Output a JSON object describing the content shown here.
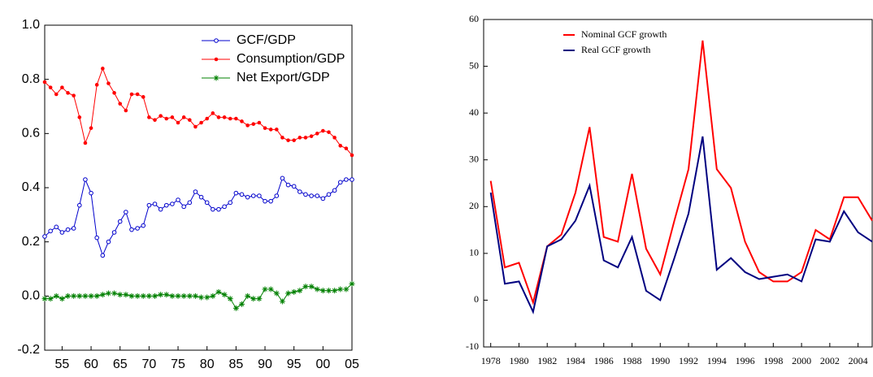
{
  "chart_data": [
    {
      "type": "line",
      "x": [
        1952,
        1953,
        1954,
        1955,
        1956,
        1957,
        1958,
        1959,
        1960,
        1961,
        1962,
        1963,
        1964,
        1965,
        1966,
        1967,
        1968,
        1969,
        1970,
        1971,
        1972,
        1973,
        1974,
        1975,
        1976,
        1977,
        1978,
        1979,
        1980,
        1981,
        1982,
        1983,
        1984,
        1985,
        1986,
        1987,
        1988,
        1989,
        1990,
        1991,
        1992,
        1993,
        1994,
        1995,
        1996,
        1997,
        1998,
        1999,
        2000,
        2001,
        2002,
        2003,
        2004,
        2005
      ],
      "series": [
        {
          "name": "GCF/GDP",
          "color": "#0000cc",
          "marker": "open-circle",
          "values": [
            0.22,
            0.24,
            0.255,
            0.235,
            0.245,
            0.25,
            0.335,
            0.43,
            0.38,
            0.215,
            0.15,
            0.2,
            0.235,
            0.275,
            0.31,
            0.245,
            0.25,
            0.26,
            0.335,
            0.34,
            0.32,
            0.335,
            0.34,
            0.355,
            0.33,
            0.345,
            0.385,
            0.365,
            0.345,
            0.32,
            0.32,
            0.33,
            0.345,
            0.38,
            0.375,
            0.365,
            0.37,
            0.37,
            0.35,
            0.35,
            0.37,
            0.435,
            0.41,
            0.405,
            0.385,
            0.375,
            0.37,
            0.37,
            0.36,
            0.375,
            0.39,
            0.42,
            0.43,
            0.43
          ]
        },
        {
          "name": "Consumption/GDP",
          "color": "#ff0000",
          "marker": "dot",
          "values": [
            0.79,
            0.77,
            0.745,
            0.77,
            0.75,
            0.74,
            0.66,
            0.565,
            0.62,
            0.78,
            0.84,
            0.785,
            0.75,
            0.71,
            0.685,
            0.745,
            0.745,
            0.735,
            0.66,
            0.65,
            0.665,
            0.655,
            0.66,
            0.64,
            0.66,
            0.65,
            0.625,
            0.64,
            0.655,
            0.675,
            0.66,
            0.66,
            0.655,
            0.655,
            0.645,
            0.63,
            0.635,
            0.64,
            0.62,
            0.615,
            0.615,
            0.585,
            0.575,
            0.575,
            0.585,
            0.585,
            0.59,
            0.6,
            0.61,
            0.605,
            0.585,
            0.555,
            0.545,
            0.52
          ]
        },
        {
          "name": "Net Export/GDP",
          "color": "#008000",
          "marker": "star",
          "values": [
            -0.01,
            -0.01,
            0,
            -0.01,
            0,
            0,
            0,
            0,
            0,
            0,
            0.005,
            0.01,
            0.01,
            0.005,
            0.005,
            0,
            0,
            0,
            0,
            0,
            0.005,
            0.005,
            0,
            0,
            0,
            0,
            0,
            -0.005,
            -0.005,
            0,
            0.015,
            0.005,
            -0.01,
            -0.045,
            -0.03,
            0,
            -0.01,
            -0.01,
            0.025,
            0.025,
            0.01,
            -0.02,
            0.01,
            0.015,
            0.02,
            0.035,
            0.035,
            0.025,
            0.02,
            0.02,
            0.02,
            0.025,
            0.025,
            0.045
          ]
        }
      ],
      "xlim": [
        1952,
        2005
      ],
      "xticks": [
        {
          "value": 1955,
          "label": "55"
        },
        {
          "value": 1960,
          "label": "60"
        },
        {
          "value": 1965,
          "label": "65"
        },
        {
          "value": 1970,
          "label": "70"
        },
        {
          "value": 1975,
          "label": "75"
        },
        {
          "value": 1980,
          "label": "80"
        },
        {
          "value": 1985,
          "label": "85"
        },
        {
          "value": 1990,
          "label": "90"
        },
        {
          "value": 1995,
          "label": "95"
        },
        {
          "value": 2000,
          "label": "00"
        },
        {
          "value": 2005,
          "label": "05"
        }
      ],
      "ylim": [
        -0.2,
        1.0
      ],
      "yticks": [
        {
          "value": -0.2,
          "label": "-0.2"
        },
        {
          "value": 0,
          "label": "0.0"
        },
        {
          "value": 0.2,
          "label": "0.2"
        },
        {
          "value": 0.4,
          "label": "0.4"
        },
        {
          "value": 0.6,
          "label": "0.6"
        },
        {
          "value": 0.8,
          "label": "0.8"
        },
        {
          "value": 1.0,
          "label": "1.0"
        }
      ],
      "legend": "upper right"
    },
    {
      "type": "line",
      "x": [
        1978,
        1979,
        1980,
        1981,
        1982,
        1983,
        1984,
        1985,
        1986,
        1987,
        1988,
        1989,
        1990,
        1991,
        1992,
        1993,
        1994,
        1995,
        1996,
        1997,
        1998,
        1999,
        2000,
        2001,
        2002,
        2003,
        2004,
        2005
      ],
      "series": [
        {
          "name": "Nominal GCF growth",
          "color": "#ff0000",
          "values": [
            25.5,
            7,
            8,
            -0.5,
            11.5,
            14,
            23,
            37,
            13.5,
            12.5,
            27,
            11,
            5.5,
            17,
            28,
            55.5,
            28,
            24,
            12.5,
            6,
            4,
            4,
            6,
            15,
            13,
            22,
            22,
            17
          ]
        },
        {
          "name": "Real GCF growth",
          "color": "#000080",
          "values": [
            23,
            3.5,
            4,
            -2.5,
            11.5,
            13,
            17,
            24.5,
            8.5,
            7,
            13.5,
            2,
            0,
            9,
            18.5,
            35,
            6.5,
            9,
            6,
            4.5,
            5,
            5.5,
            4,
            13,
            12.5,
            19,
            14.5,
            12.5
          ]
        }
      ],
      "xlim": [
        1977.5,
        2005
      ],
      "xticks": [
        1978,
        1980,
        1982,
        1984,
        1986,
        1988,
        1990,
        1992,
        1994,
        1996,
        1998,
        2000,
        2002,
        2004
      ],
      "ylim": [
        -10,
        60
      ],
      "yticks": [
        -10,
        0,
        10,
        20,
        30,
        40,
        50,
        60
      ],
      "legend": "upper left"
    }
  ]
}
